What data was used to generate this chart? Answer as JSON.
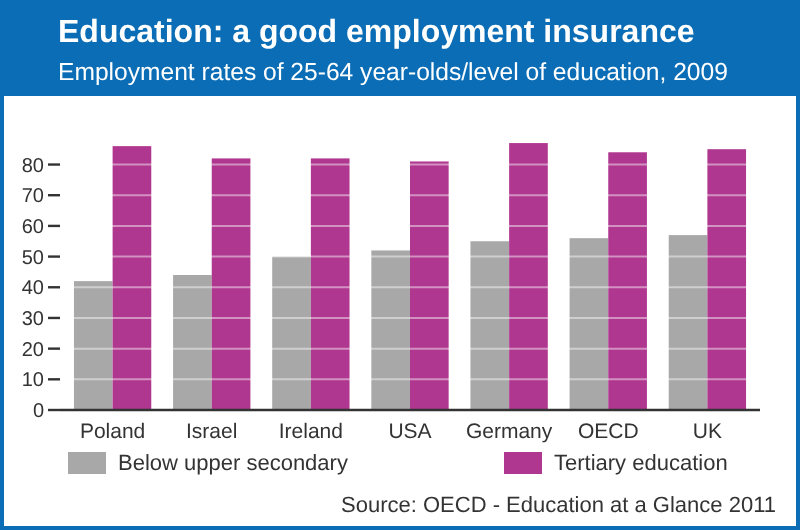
{
  "chart_data": {
    "type": "bar",
    "title": "Education: a good employment insurance",
    "subtitle": "Employment rates of 25-64 year-olds/level of education, 2009",
    "categories": [
      "Poland",
      "Israel",
      "Ireland",
      "USA",
      "Germany",
      "OECD",
      "UK"
    ],
    "series": [
      {
        "name": "Below upper secondary",
        "color": "#a8a8a8",
        "values": [
          42,
          44,
          50,
          52,
          55,
          56,
          57
        ]
      },
      {
        "name": "Tertiary education",
        "color": "#b0378f",
        "values": [
          86,
          82,
          82,
          81,
          87,
          84,
          85
        ]
      }
    ],
    "ylim": [
      0,
      88
    ],
    "yticks": [
      0,
      10,
      20,
      30,
      40,
      50,
      60,
      70,
      80
    ],
    "grid": "y",
    "legend": "bottom",
    "annotations": [
      "Source: OECD - Education at a Glance 2011"
    ]
  }
}
